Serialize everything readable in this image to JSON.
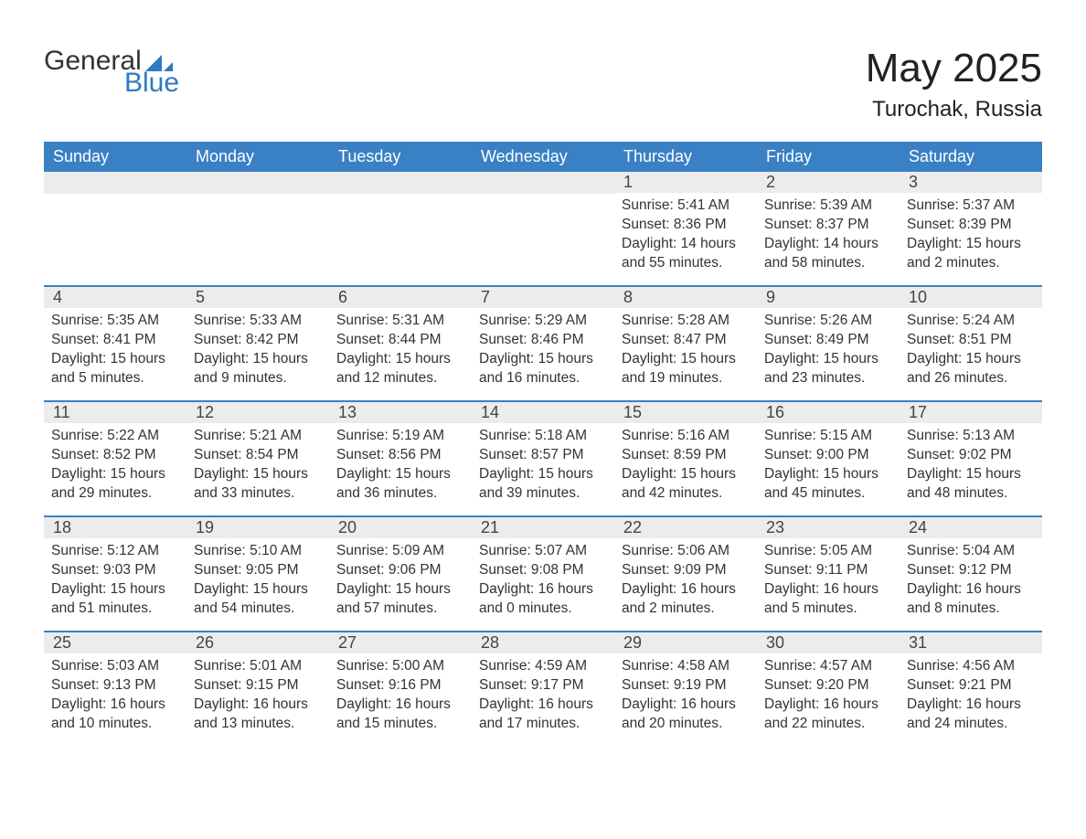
{
  "brand": {
    "text1": "General",
    "text2": "Blue"
  },
  "header": {
    "month": "May 2025",
    "location": "Turochak, Russia"
  },
  "weekdays": [
    "Sunday",
    "Monday",
    "Tuesday",
    "Wednesday",
    "Thursday",
    "Friday",
    "Saturday"
  ],
  "colors": {
    "header_bg": "#3a80c4",
    "header_text": "#ffffff",
    "daynum_bg": "#ececec",
    "row_border": "#3a80c4",
    "brand_accent": "#2f7ac0",
    "text": "#333333",
    "background": "#ffffff"
  },
  "weeks": [
    [
      {
        "n": "",
        "sunrise": "",
        "sunset": "",
        "daylight": ""
      },
      {
        "n": "",
        "sunrise": "",
        "sunset": "",
        "daylight": ""
      },
      {
        "n": "",
        "sunrise": "",
        "sunset": "",
        "daylight": ""
      },
      {
        "n": "",
        "sunrise": "",
        "sunset": "",
        "daylight": ""
      },
      {
        "n": "1",
        "sunrise": "Sunrise: 5:41 AM",
        "sunset": "Sunset: 8:36 PM",
        "daylight": "Daylight: 14 hours and 55 minutes."
      },
      {
        "n": "2",
        "sunrise": "Sunrise: 5:39 AM",
        "sunset": "Sunset: 8:37 PM",
        "daylight": "Daylight: 14 hours and 58 minutes."
      },
      {
        "n": "3",
        "sunrise": "Sunrise: 5:37 AM",
        "sunset": "Sunset: 8:39 PM",
        "daylight": "Daylight: 15 hours and 2 minutes."
      }
    ],
    [
      {
        "n": "4",
        "sunrise": "Sunrise: 5:35 AM",
        "sunset": "Sunset: 8:41 PM",
        "daylight": "Daylight: 15 hours and 5 minutes."
      },
      {
        "n": "5",
        "sunrise": "Sunrise: 5:33 AM",
        "sunset": "Sunset: 8:42 PM",
        "daylight": "Daylight: 15 hours and 9 minutes."
      },
      {
        "n": "6",
        "sunrise": "Sunrise: 5:31 AM",
        "sunset": "Sunset: 8:44 PM",
        "daylight": "Daylight: 15 hours and 12 minutes."
      },
      {
        "n": "7",
        "sunrise": "Sunrise: 5:29 AM",
        "sunset": "Sunset: 8:46 PM",
        "daylight": "Daylight: 15 hours and 16 minutes."
      },
      {
        "n": "8",
        "sunrise": "Sunrise: 5:28 AM",
        "sunset": "Sunset: 8:47 PM",
        "daylight": "Daylight: 15 hours and 19 minutes."
      },
      {
        "n": "9",
        "sunrise": "Sunrise: 5:26 AM",
        "sunset": "Sunset: 8:49 PM",
        "daylight": "Daylight: 15 hours and 23 minutes."
      },
      {
        "n": "10",
        "sunrise": "Sunrise: 5:24 AM",
        "sunset": "Sunset: 8:51 PM",
        "daylight": "Daylight: 15 hours and 26 minutes."
      }
    ],
    [
      {
        "n": "11",
        "sunrise": "Sunrise: 5:22 AM",
        "sunset": "Sunset: 8:52 PM",
        "daylight": "Daylight: 15 hours and 29 minutes."
      },
      {
        "n": "12",
        "sunrise": "Sunrise: 5:21 AM",
        "sunset": "Sunset: 8:54 PM",
        "daylight": "Daylight: 15 hours and 33 minutes."
      },
      {
        "n": "13",
        "sunrise": "Sunrise: 5:19 AM",
        "sunset": "Sunset: 8:56 PM",
        "daylight": "Daylight: 15 hours and 36 minutes."
      },
      {
        "n": "14",
        "sunrise": "Sunrise: 5:18 AM",
        "sunset": "Sunset: 8:57 PM",
        "daylight": "Daylight: 15 hours and 39 minutes."
      },
      {
        "n": "15",
        "sunrise": "Sunrise: 5:16 AM",
        "sunset": "Sunset: 8:59 PM",
        "daylight": "Daylight: 15 hours and 42 minutes."
      },
      {
        "n": "16",
        "sunrise": "Sunrise: 5:15 AM",
        "sunset": "Sunset: 9:00 PM",
        "daylight": "Daylight: 15 hours and 45 minutes."
      },
      {
        "n": "17",
        "sunrise": "Sunrise: 5:13 AM",
        "sunset": "Sunset: 9:02 PM",
        "daylight": "Daylight: 15 hours and 48 minutes."
      }
    ],
    [
      {
        "n": "18",
        "sunrise": "Sunrise: 5:12 AM",
        "sunset": "Sunset: 9:03 PM",
        "daylight": "Daylight: 15 hours and 51 minutes."
      },
      {
        "n": "19",
        "sunrise": "Sunrise: 5:10 AM",
        "sunset": "Sunset: 9:05 PM",
        "daylight": "Daylight: 15 hours and 54 minutes."
      },
      {
        "n": "20",
        "sunrise": "Sunrise: 5:09 AM",
        "sunset": "Sunset: 9:06 PM",
        "daylight": "Daylight: 15 hours and 57 minutes."
      },
      {
        "n": "21",
        "sunrise": "Sunrise: 5:07 AM",
        "sunset": "Sunset: 9:08 PM",
        "daylight": "Daylight: 16 hours and 0 minutes."
      },
      {
        "n": "22",
        "sunrise": "Sunrise: 5:06 AM",
        "sunset": "Sunset: 9:09 PM",
        "daylight": "Daylight: 16 hours and 2 minutes."
      },
      {
        "n": "23",
        "sunrise": "Sunrise: 5:05 AM",
        "sunset": "Sunset: 9:11 PM",
        "daylight": "Daylight: 16 hours and 5 minutes."
      },
      {
        "n": "24",
        "sunrise": "Sunrise: 5:04 AM",
        "sunset": "Sunset: 9:12 PM",
        "daylight": "Daylight: 16 hours and 8 minutes."
      }
    ],
    [
      {
        "n": "25",
        "sunrise": "Sunrise: 5:03 AM",
        "sunset": "Sunset: 9:13 PM",
        "daylight": "Daylight: 16 hours and 10 minutes."
      },
      {
        "n": "26",
        "sunrise": "Sunrise: 5:01 AM",
        "sunset": "Sunset: 9:15 PM",
        "daylight": "Daylight: 16 hours and 13 minutes."
      },
      {
        "n": "27",
        "sunrise": "Sunrise: 5:00 AM",
        "sunset": "Sunset: 9:16 PM",
        "daylight": "Daylight: 16 hours and 15 minutes."
      },
      {
        "n": "28",
        "sunrise": "Sunrise: 4:59 AM",
        "sunset": "Sunset: 9:17 PM",
        "daylight": "Daylight: 16 hours and 17 minutes."
      },
      {
        "n": "29",
        "sunrise": "Sunrise: 4:58 AM",
        "sunset": "Sunset: 9:19 PM",
        "daylight": "Daylight: 16 hours and 20 minutes."
      },
      {
        "n": "30",
        "sunrise": "Sunrise: 4:57 AM",
        "sunset": "Sunset: 9:20 PM",
        "daylight": "Daylight: 16 hours and 22 minutes."
      },
      {
        "n": "31",
        "sunrise": "Sunrise: 4:56 AM",
        "sunset": "Sunset: 9:21 PM",
        "daylight": "Daylight: 16 hours and 24 minutes."
      }
    ]
  ]
}
